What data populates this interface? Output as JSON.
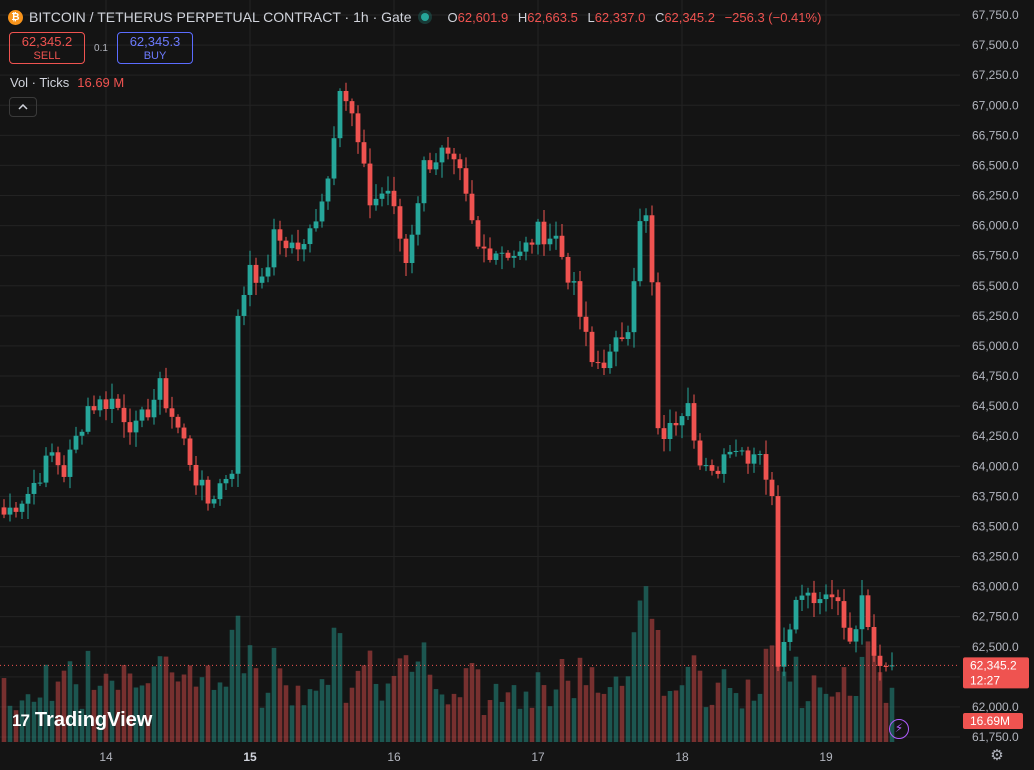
{
  "header": {
    "btc_glyph": "₿",
    "title": "BITCOIN / TETHERUS PERPETUAL CONTRACT · 1h · Gate",
    "ohlc": {
      "o_label": "O",
      "o": "62,601.9",
      "h_label": "H",
      "h": "62,663.5",
      "l_label": "L",
      "l": "62,337.0",
      "c_label": "C",
      "c": "62,345.2",
      "change": "−256.3 (−0.41%)"
    }
  },
  "trade": {
    "sell_price": "62,345.2",
    "sell_label": "SELL",
    "spread": "0.1",
    "buy_price": "62,345.3",
    "buy_label": "BUY"
  },
  "volume": {
    "label": "Vol · Ticks",
    "value": "16.69 M"
  },
  "logo": {
    "mark": "17",
    "text": "TradingView"
  },
  "colors": {
    "up": "#26a69a",
    "down": "#ef5350",
    "background": "#141414",
    "grid": "#232323"
  },
  "chart_data": {
    "type": "candlestick",
    "title": "BITCOIN / TETHERUS PERPETUAL CONTRACT · 1h · Gate",
    "ylim": [
      61750,
      67750
    ],
    "y_ticks": [
      "67,750.0",
      "67,500.0",
      "67,250.0",
      "67,000.0",
      "66,750.0",
      "66,500.0",
      "66,250.0",
      "66,000.0",
      "65,750.0",
      "65,500.0",
      "65,250.0",
      "65,000.0",
      "64,750.0",
      "64,500.0",
      "64,250.0",
      "64,000.0",
      "63,750.0",
      "63,500.0",
      "63,250.0",
      "63,000.0",
      "62,750.0",
      "62,500.0",
      "62,250.0",
      "62,000.0",
      "61,750.0"
    ],
    "y_tick_values": [
      67750,
      67500,
      67250,
      67000,
      66750,
      66500,
      66250,
      66000,
      65750,
      65500,
      65250,
      65000,
      64750,
      64500,
      64250,
      64000,
      63750,
      63500,
      63250,
      63000,
      62750,
      62500,
      62250,
      62000,
      61750
    ],
    "x_ticks": [
      {
        "label": "14",
        "bar": 17,
        "bold": false
      },
      {
        "label": "15",
        "bar": 41,
        "bold": true
      },
      {
        "label": "16",
        "bar": 65,
        "bold": false
      },
      {
        "label": "17",
        "bar": 89,
        "bold": false
      },
      {
        "label": "18",
        "bar": 113,
        "bold": false
      },
      {
        "label": "19",
        "bar": 137,
        "bold": false
      }
    ],
    "bars_visible": 149,
    "price_anchors": [
      [
        0,
        63600
      ],
      [
        4,
        63780
      ],
      [
        8,
        64100
      ],
      [
        10,
        63950
      ],
      [
        14,
        64500
      ],
      [
        18,
        64550
      ],
      [
        22,
        64300
      ],
      [
        26,
        64650
      ],
      [
        30,
        64200
      ],
      [
        32,
        63900
      ],
      [
        34,
        63700
      ],
      [
        38,
        64000
      ],
      [
        39,
        65200
      ],
      [
        41,
        65700
      ],
      [
        43,
        65500
      ],
      [
        45,
        65900
      ],
      [
        50,
        65800
      ],
      [
        54,
        66400
      ],
      [
        56,
        67200
      ],
      [
        58,
        66900
      ],
      [
        61,
        66200
      ],
      [
        64,
        66300
      ],
      [
        67,
        65700
      ],
      [
        70,
        66500
      ],
      [
        73,
        66600
      ],
      [
        76,
        66400
      ],
      [
        79,
        65800
      ],
      [
        83,
        65800
      ],
      [
        86,
        65750
      ],
      [
        89,
        65950
      ],
      [
        92,
        65900
      ],
      [
        95,
        65450
      ],
      [
        98,
        64850
      ],
      [
        101,
        64900
      ],
      [
        104,
        65200
      ],
      [
        106,
        66000
      ],
      [
        107,
        66050
      ],
      [
        108,
        65500
      ],
      [
        109,
        64250
      ],
      [
        111,
        64300
      ],
      [
        114,
        64600
      ],
      [
        116,
        64000
      ],
      [
        118,
        63900
      ],
      [
        121,
        64200
      ],
      [
        124,
        64100
      ],
      [
        126,
        64150
      ],
      [
        128,
        63700
      ],
      [
        129,
        62400
      ],
      [
        130,
        62600
      ],
      [
        133,
        63000
      ],
      [
        136,
        62900
      ],
      [
        138,
        63000
      ],
      [
        141,
        62500
      ],
      [
        143,
        62850
      ],
      [
        145,
        62400
      ],
      [
        148,
        62345
      ]
    ],
    "volume_levels": [
      0.15,
      1.0
    ],
    "last_price": {
      "value": 62345.2,
      "label": "62,345.2",
      "countdown": "12:27"
    },
    "volume_last": {
      "label": "16.69M"
    }
  }
}
